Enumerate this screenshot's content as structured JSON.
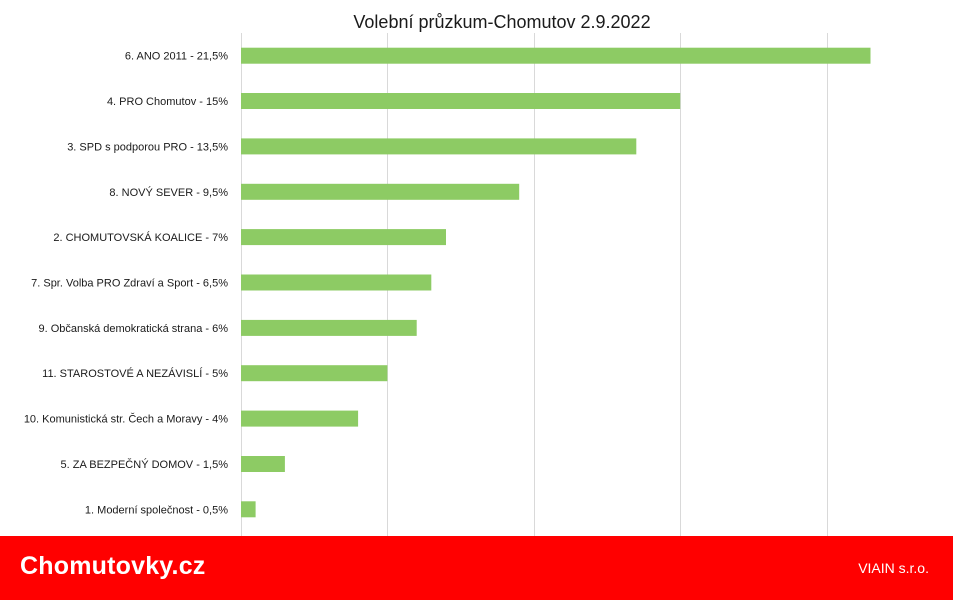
{
  "chart_data": {
    "type": "bar",
    "orientation": "horizontal",
    "title": "Volební průzkum-Chomutov 2.9.2022",
    "categories": [
      "6. ANO 2011 - 21,5%",
      "4. PRO Chomutov - 15%",
      "3. SPD s podporou PRO - 13,5%",
      "8. NOVÝ SEVER - 9,5%",
      "2. CHOMUTOVSKÁ KOALICE - 7%",
      "7. Spr. Volba PRO Zdraví a Sport - 6,5%",
      "9. Občanská demokratická strana - 6%",
      "11. STAROSTOVÉ A NEZÁVISLÍ - 5%",
      "10. Komunistická str. Čech a Moravy - 4%",
      "5. ZA BEZPEČNÝ DOMOV - 1,5%",
      "1. Moderní společnost - 0,5%"
    ],
    "values": [
      21.5,
      15,
      13.5,
      9.5,
      7,
      6.5,
      6,
      5,
      4,
      1.5,
      0.5
    ],
    "xlim": [
      0,
      25
    ],
    "gridlines": [
      0,
      5,
      10,
      15,
      20,
      25
    ],
    "grid": true,
    "legend": "none",
    "xlabel": "",
    "ylabel": "",
    "bar_color": "#8dcb64",
    "grid_color": "#d9d9d9"
  },
  "footer": {
    "brand": "Chomutovky.cz",
    "company": "VIAIN s.r.o.",
    "background": "#ff0000"
  }
}
